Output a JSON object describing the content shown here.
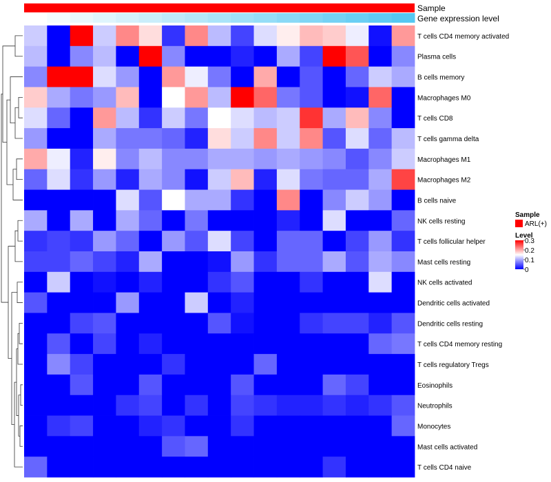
{
  "chart_data": {
    "type": "heatmap",
    "title": "",
    "annotation_tracks": [
      {
        "label": "Sample",
        "kind": "categorical",
        "color": "#ff0000"
      },
      {
        "label": "Gene expression level",
        "kind": "continuous",
        "low_color": "#ffffff",
        "high_color": "#55c8f2"
      }
    ],
    "rows": [
      "T cells CD4 memory activated",
      "Plasma cells",
      "B cells memory",
      "Macrophages M0",
      "T cells CD8",
      "T cells gamma delta",
      "Macrophages M1",
      "Macrophages M2",
      "B cells naive",
      "NK cells resting",
      "T cells follicular helper",
      "Mast cells resting",
      "NK cells activated",
      "Dendritic cells activated",
      "Dendritic cells resting",
      "T cells CD4 memory resting",
      "T cells regulatory  Tregs",
      "Eosinophils",
      "Neutrophils",
      "Monocytes",
      "Mast cells activated",
      "T cells CD4 naive"
    ],
    "n_columns": 17,
    "values": [
      [
        0.12,
        0.0,
        0.3,
        0.12,
        0.22,
        0.17,
        0.03,
        0.22,
        0.11,
        0.04,
        0.13,
        0.16,
        0.19,
        0.18,
        0.14,
        0.01,
        0.21
      ],
      [
        0.11,
        0.0,
        0.08,
        0.11,
        0.0,
        0.3,
        0.08,
        0.0,
        0.0,
        0.02,
        0.0,
        0.1,
        0.04,
        0.3,
        0.25,
        0.0,
        0.08
      ],
      [
        0.08,
        0.3,
        0.3,
        0.13,
        0.09,
        0.0,
        0.21,
        0.14,
        0.07,
        0.0,
        0.2,
        0.0,
        0.05,
        0.0,
        0.06,
        0.12,
        0.1
      ],
      [
        0.18,
        0.1,
        0.07,
        0.09,
        0.19,
        0.0,
        0.15,
        0.21,
        0.11,
        0.3,
        0.24,
        0.07,
        0.05,
        0.0,
        0.01,
        0.24,
        0.0
      ],
      [
        0.13,
        0.06,
        0.0,
        0.21,
        0.11,
        0.03,
        0.12,
        0.07,
        0.15,
        0.13,
        0.11,
        0.12,
        0.27,
        0.1,
        0.19,
        0.08,
        0.0
      ],
      [
        0.09,
        0.0,
        0.0,
        0.1,
        0.07,
        0.07,
        0.06,
        0.02,
        0.17,
        0.12,
        0.22,
        0.12,
        0.22,
        0.05,
        0.13,
        0.06,
        0.11
      ],
      [
        0.2,
        0.14,
        0.02,
        0.16,
        0.08,
        0.11,
        0.08,
        0.08,
        0.1,
        0.1,
        0.09,
        0.1,
        0.09,
        0.08,
        0.05,
        0.08,
        0.12
      ],
      [
        0.06,
        0.13,
        0.03,
        0.09,
        0.02,
        0.1,
        0.08,
        0.01,
        0.12,
        0.19,
        0.02,
        0.13,
        0.07,
        0.06,
        0.06,
        0.1,
        0.26
      ],
      [
        0.0,
        0.0,
        0.0,
        0.0,
        0.13,
        0.05,
        0.15,
        0.1,
        0.1,
        0.03,
        0.0,
        0.22,
        0.0,
        0.08,
        0.12,
        0.09,
        0.0
      ],
      [
        0.1,
        0.0,
        0.1,
        0.0,
        0.1,
        0.06,
        0.0,
        0.07,
        0.0,
        0.0,
        0.0,
        0.02,
        0.0,
        0.13,
        0.0,
        0.0,
        0.06
      ],
      [
        0.03,
        0.04,
        0.03,
        0.09,
        0.06,
        0.0,
        0.09,
        0.05,
        0.13,
        0.04,
        0.0,
        0.06,
        0.06,
        0.0,
        0.04,
        0.09,
        0.03
      ],
      [
        0.04,
        0.04,
        0.06,
        0.04,
        0.02,
        0.1,
        0.0,
        0.0,
        0.01,
        0.09,
        0.03,
        0.06,
        0.06,
        0.1,
        0.05,
        0.1,
        0.08
      ],
      [
        0.0,
        0.12,
        0.0,
        0.01,
        0.0,
        0.02,
        0.0,
        0.0,
        0.03,
        0.05,
        0.0,
        0.0,
        0.03,
        0.0,
        0.0,
        0.13,
        0.0
      ],
      [
        0.05,
        0.0,
        0.0,
        0.0,
        0.09,
        0.0,
        0.0,
        0.12,
        0.0,
        0.02,
        0.0,
        0.0,
        0.0,
        0.0,
        0.0,
        0.0,
        0.0
      ],
      [
        0.0,
        0.0,
        0.04,
        0.05,
        0.0,
        0.0,
        0.0,
        0.0,
        0.05,
        0.01,
        0.0,
        0.0,
        0.03,
        0.04,
        0.04,
        0.02,
        0.05
      ],
      [
        0.0,
        0.05,
        0.0,
        0.04,
        0.0,
        0.02,
        0.0,
        0.0,
        0.0,
        0.0,
        0.0,
        0.0,
        0.0,
        0.0,
        0.0,
        0.06,
        0.07
      ],
      [
        0.0,
        0.08,
        0.04,
        0.0,
        0.0,
        0.0,
        0.03,
        0.0,
        0.0,
        0.0,
        0.06,
        0.0,
        0.0,
        0.0,
        0.0,
        0.0,
        0.0
      ],
      [
        0.0,
        0.0,
        0.05,
        0.0,
        0.0,
        0.05,
        0.0,
        0.0,
        0.0,
        0.05,
        0.0,
        0.0,
        0.0,
        0.06,
        0.04,
        0.0,
        0.0
      ],
      [
        0.0,
        0.0,
        0.0,
        0.0,
        0.03,
        0.04,
        0.0,
        0.03,
        0.0,
        0.04,
        0.03,
        0.02,
        0.02,
        0.03,
        0.02,
        0.03,
        0.05
      ],
      [
        0.0,
        0.03,
        0.04,
        0.0,
        0.0,
        0.02,
        0.03,
        0.0,
        0.0,
        0.03,
        0.0,
        0.0,
        0.0,
        0.0,
        0.0,
        0.0,
        0.06
      ],
      [
        0.0,
        0.0,
        0.0,
        0.0,
        0.0,
        0.0,
        0.05,
        0.06,
        0.0,
        0.0,
        0.0,
        0.0,
        0.0,
        0.0,
        0.0,
        0.0,
        0.0
      ],
      [
        0.06,
        0.0,
        0.0,
        0.0,
        0.0,
        0.0,
        0.0,
        0.0,
        0.0,
        0.0,
        0.0,
        0.0,
        0.0,
        0.03,
        0.0,
        0.0,
        0.0
      ]
    ],
    "color_scale": {
      "min": 0,
      "max": 0.3,
      "low_color": "#0000ff",
      "mid_color": "#ffffff",
      "high_color": "#ff0000",
      "mid_value": 0.15
    },
    "legend": {
      "sample_title": "Sample",
      "sample_entry": "ARL(+)",
      "level_title": "Level",
      "level_ticks": [
        "0.3",
        "0.2",
        "0.1",
        "0"
      ]
    },
    "row_dendrogram": true
  }
}
